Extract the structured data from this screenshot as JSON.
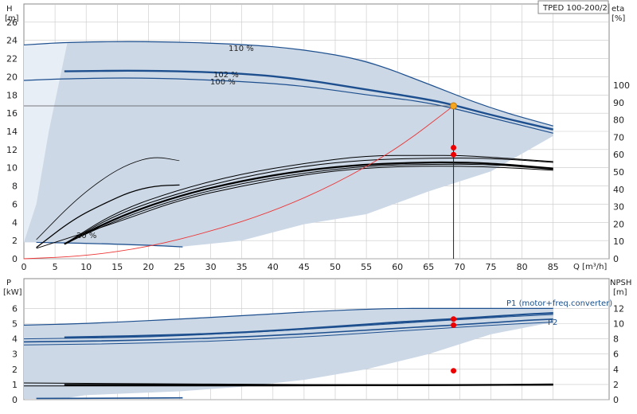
{
  "pump_model": "TPED 100-200/2",
  "chart_data": [
    {
      "type": "line",
      "panel": "head-efficiency",
      "ylabel": "H",
      "yunit": "[m]",
      "y2label": "eta",
      "y2unit": "[%]",
      "xlabel": "Q [m³/h]",
      "xlim": [
        0,
        90
      ],
      "ylim": [
        0,
        28
      ],
      "y2lim": [
        0,
        130
      ],
      "x_ticks": [
        "0",
        "5",
        "10",
        "15",
        "20",
        "25",
        "30",
        "35",
        "40",
        "45",
        "50",
        "55",
        "60",
        "65",
        "70",
        "75",
        "80",
        "85"
      ],
      "x_tick_values": [
        0,
        5,
        10,
        15,
        20,
        25,
        30,
        35,
        40,
        45,
        50,
        55,
        60,
        65,
        70,
        75,
        80,
        85
      ],
      "y_ticks": [
        "0",
        "2",
        "4",
        "6",
        "8",
        "10",
        "12",
        "14",
        "16",
        "18",
        "20",
        "22",
        "24",
        "26"
      ],
      "y_tick_values": [
        0,
        2,
        4,
        6,
        8,
        10,
        12,
        14,
        16,
        18,
        20,
        22,
        24,
        26
      ],
      "y2_ticks": [
        "0",
        "10",
        "20",
        "30",
        "40",
        "50",
        "60",
        "70",
        "80",
        "90",
        "100"
      ],
      "y2_tick_values": [
        0,
        10,
        20,
        30,
        40,
        50,
        60,
        70,
        80,
        90,
        100
      ],
      "grid": true,
      "curve_labels": [
        "110 %",
        "102 %",
        "100 %",
        "20 %"
      ],
      "operating_point": {
        "q": 69,
        "h": 16.8,
        "eta": [
          60,
          64
        ]
      },
      "series": [
        {
          "key": "h110",
          "points": [
            [
              0,
              23.5
            ],
            [
              7,
              23.8
            ],
            [
              20,
              23.9
            ],
            [
              35,
              23.6
            ],
            [
              45,
              23.0
            ],
            [
              55,
              21.8
            ],
            [
              65,
              19.2
            ],
            [
              75,
              16.5
            ],
            [
              85,
              14.6
            ]
          ]
        },
        {
          "key": "h102",
          "points": [
            [
              6.5,
              20.6
            ],
            [
              20,
              20.7
            ],
            [
              35,
              20.4
            ],
            [
              45,
              19.7
            ],
            [
              55,
              18.6
            ],
            [
              65,
              17.5
            ],
            [
              69,
              16.9
            ],
            [
              75,
              15.8
            ],
            [
              85,
              14.2
            ]
          ]
        },
        {
          "key": "h100",
          "points": [
            [
              0,
              19.6
            ],
            [
              7,
              19.8
            ],
            [
              20,
              19.9
            ],
            [
              35,
              19.5
            ],
            [
              45,
              19.0
            ],
            [
              55,
              18.0
            ],
            [
              65,
              17.2
            ],
            [
              75,
              15.5
            ],
            [
              85,
              13.8
            ]
          ]
        },
        {
          "key": "h20",
          "points": [
            [
              2,
              1.8
            ],
            [
              10,
              1.7
            ],
            [
              20,
              1.5
            ],
            [
              25.5,
              1.3
            ]
          ]
        },
        {
          "key": "eta_max",
          "points": [
            [
              6.5,
              8.5
            ],
            [
              15,
              27.5
            ],
            [
              25,
              40
            ],
            [
              35,
              49
            ],
            [
              45,
              55
            ],
            [
              55,
              59.5
            ],
            [
              65,
              59.5
            ],
            [
              70,
              59.5
            ],
            [
              75,
              58.5
            ],
            [
              85,
              56
            ]
          ]
        },
        {
          "key": "eta_a",
          "points": [
            [
              6.5,
              8.5
            ],
            [
              15,
              26
            ],
            [
              25,
              38
            ],
            [
              35,
              47
            ],
            [
              45,
              53.5
            ],
            [
              55,
              57
            ],
            [
              65,
              58
            ],
            [
              75,
              58
            ],
            [
              85,
              55.5
            ]
          ]
        },
        {
          "key": "eta_b",
          "points": [
            [
              6.5,
              8.5
            ],
            [
              15,
              24
            ],
            [
              25,
              36.5
            ],
            [
              35,
              45
            ],
            [
              45,
              51
            ],
            [
              55,
              54.5
            ],
            [
              65,
              55.5
            ],
            [
              69,
              55.5
            ],
            [
              75,
              55
            ],
            [
              85,
              52
            ]
          ]
        },
        {
          "key": "eta_c",
          "points": [
            [
              6.5,
              8.5
            ],
            [
              15,
              22.5
            ],
            [
              25,
              35
            ],
            [
              35,
              43.5
            ],
            [
              45,
              49.5
            ],
            [
              55,
              53.5
            ],
            [
              65,
              54.5
            ],
            [
              75,
              54.5
            ],
            [
              85,
              51.5
            ]
          ]
        },
        {
          "key": "eta_d",
          "points": [
            [
              2,
              6
            ],
            [
              15,
              21
            ],
            [
              25,
              34
            ],
            [
              35,
              42
            ],
            [
              45,
              48.5
            ],
            [
              55,
              52.5
            ],
            [
              65,
              53.5
            ],
            [
              75,
              53
            ],
            [
              85,
              51
            ]
          ]
        },
        {
          "key": "eta_mid",
          "points": [
            [
              2,
              6.5
            ],
            [
              8,
              23
            ],
            [
              13,
              32
            ],
            [
              17,
              38.5
            ],
            [
              21,
              42
            ],
            [
              25,
              42.5
            ]
          ]
        },
        {
          "key": "eta_top",
          "points": [
            [
              2,
              11
            ],
            [
              8,
              33
            ],
            [
              13,
              47
            ],
            [
              17,
              55
            ],
            [
              21,
              59
            ],
            [
              25,
              56.5
            ]
          ]
        },
        {
          "key": "system",
          "points": [
            [
              0,
              0
            ],
            [
              10,
              0.3
            ],
            [
              20,
              1.3
            ],
            [
              30,
              3.0
            ],
            [
              40,
              5.2
            ],
            [
              50,
              8.2
            ],
            [
              60,
              12.1
            ],
            [
              69,
              16.8
            ]
          ]
        }
      ]
    },
    {
      "type": "line",
      "panel": "power-npsh",
      "ylabel": "P",
      "yunit": "[kW]",
      "y2label": "NPSH",
      "y2unit": "[m]",
      "xlim": [
        0,
        90
      ],
      "ylim": [
        0,
        7
      ],
      "y2lim": [
        0,
        14
      ],
      "y_ticks": [
        "0",
        "1",
        "2",
        "3",
        "4",
        "5",
        "6"
      ],
      "y_tick_values": [
        0,
        1,
        2,
        3,
        4,
        5,
        6
      ],
      "y2_ticks": [
        "0",
        "2",
        "4",
        "6",
        "8",
        "10",
        "12"
      ],
      "y2_tick_values": [
        0,
        2,
        4,
        6,
        8,
        10,
        12
      ],
      "series_labels": [
        "P1 (motor+freq.converter)",
        "P2"
      ],
      "operating_point": {
        "q": 69,
        "p1": 5.3,
        "p2": 4.9,
        "npsh": 3.8
      },
      "series": [
        {
          "key": "p1_top",
          "points": [
            [
              0,
              4.9
            ],
            [
              10,
              5.0
            ],
            [
              30,
              5.4
            ],
            [
              55,
              6.0
            ],
            [
              70,
              6.0
            ],
            [
              85,
              6.0
            ]
          ]
        },
        {
          "key": "p1_main",
          "points": [
            [
              6.5,
              4.1
            ],
            [
              20,
              4.2
            ],
            [
              35,
              4.4
            ],
            [
              50,
              4.8
            ],
            [
              60,
              5.1
            ],
            [
              69,
              5.3
            ],
            [
              80,
              5.6
            ],
            [
              85,
              5.7
            ]
          ]
        },
        {
          "key": "p1_low",
          "points": [
            [
              0,
              4.0
            ],
            [
              20,
              4.1
            ],
            [
              40,
              4.5
            ],
            [
              60,
              5.0
            ],
            [
              75,
              5.4
            ],
            [
              85,
              5.6
            ]
          ]
        },
        {
          "key": "p2_main",
          "points": [
            [
              0,
              3.8
            ],
            [
              20,
              3.9
            ],
            [
              40,
              4.2
            ],
            [
              60,
              4.7
            ],
            [
              69,
              4.9
            ],
            [
              80,
              5.2
            ],
            [
              85,
              5.3
            ]
          ]
        },
        {
          "key": "p2_low",
          "points": [
            [
              0,
              3.6
            ],
            [
              20,
              3.7
            ],
            [
              40,
              4.0
            ],
            [
              60,
              4.5
            ],
            [
              75,
              4.9
            ],
            [
              85,
              5.1
            ]
          ]
        },
        {
          "key": "npsh_a",
          "points": [
            [
              0,
              2.2
            ],
            [
              20,
              2.1
            ],
            [
              40,
              2.0
            ],
            [
              60,
              1.95
            ],
            [
              85,
              2.0
            ]
          ]
        },
        {
          "key": "npsh_b",
          "points": [
            [
              6.5,
              1.95
            ],
            [
              30,
              1.95
            ],
            [
              50,
              1.9
            ],
            [
              69,
              1.9
            ],
            [
              85,
              2.0
            ]
          ]
        },
        {
          "key": "npsh_c",
          "points": [
            [
              0,
              1.8
            ],
            [
              30,
              1.8
            ],
            [
              50,
              1.82
            ],
            [
              85,
              1.9
            ]
          ]
        },
        {
          "key": "p20",
          "points": [
            [
              2,
              0.08
            ],
            [
              15,
              0.1
            ],
            [
              25.5,
              0.12
            ]
          ]
        }
      ]
    }
  ]
}
